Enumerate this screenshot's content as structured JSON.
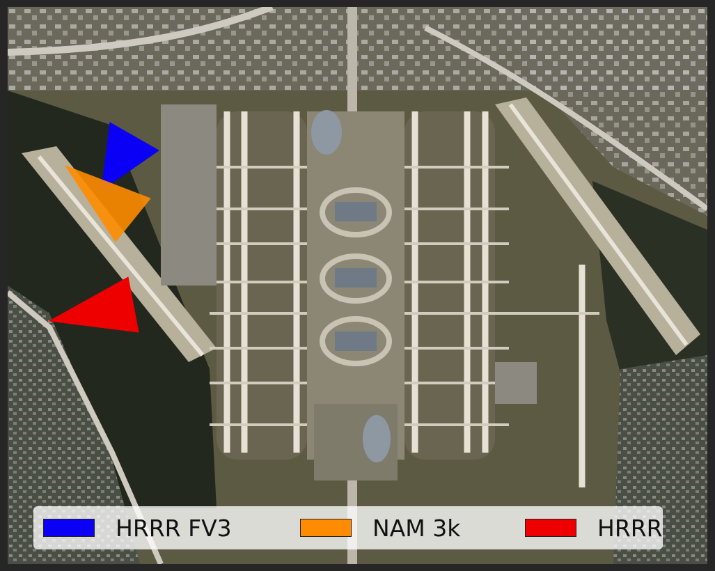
{
  "map": {
    "imagery": "satellite aerial view of a large airport with parallel runways and central terminals"
  },
  "legend": {
    "items": [
      {
        "label": "HRRR FV3",
        "color": "#0a00f5"
      },
      {
        "label": "NAM 3k",
        "color": "#ff8c00"
      },
      {
        "label": "HRRR",
        "color": "#ee0000"
      }
    ]
  },
  "markers": [
    {
      "series": "HRRR FV3",
      "color": "#0a00f5"
    },
    {
      "series": "NAM 3k",
      "color": "#ff8c00"
    },
    {
      "series": "HRRR",
      "color": "#ee0000"
    }
  ]
}
